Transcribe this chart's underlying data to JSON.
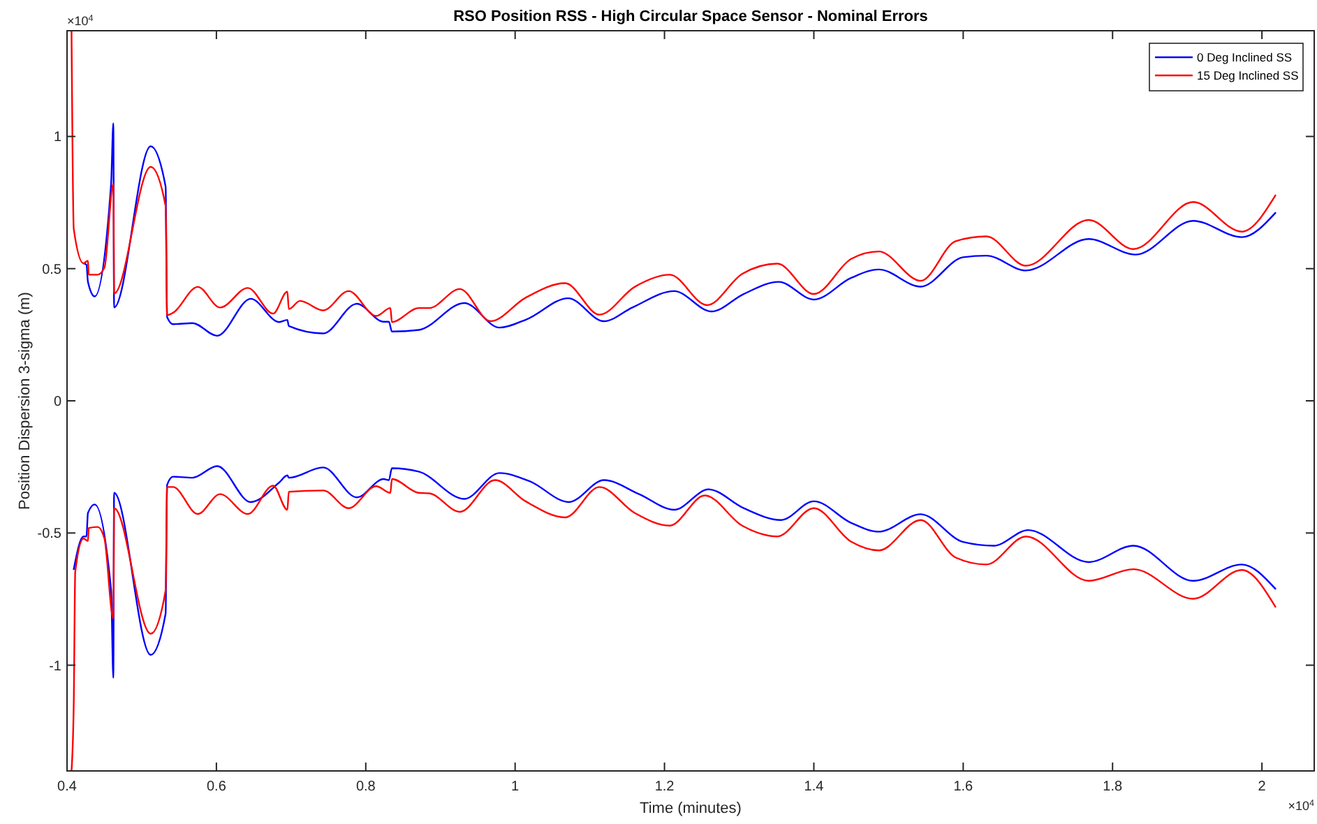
{
  "chart_data": {
    "type": "line",
    "title": "RSO Position RSS - High Circular Space Sensor - Nominal Errors",
    "xlabel": "Time (minutes)",
    "ylabel": "Position Dispersion 3-sigma (m)",
    "annotations": [
      "×10$^{4}$",
      "×10$^{4}$"
    ],
    "xlim": [
      0.4,
      2.07
    ],
    "xticks": [
      0.4,
      0.6,
      0.8,
      1,
      1.2,
      1.4,
      1.6,
      1.8,
      2
    ],
    "ylim": [
      -1.4,
      1.4
    ],
    "yticks": [
      -1,
      -0.5,
      0,
      0.5,
      1
    ],
    "grid": false,
    "legend": "top right",
    "line_style": "solid",
    "marker": "none",
    "series": [
      {
        "name": "0 Deg Inclined SS",
        "color": "#0000ff",
        "x": [
          0.422,
          0.426,
          0.428,
          0.437,
          0.459,
          0.462,
          0.463,
          0.512,
          0.532,
          0.534,
          0.542,
          0.568,
          0.601,
          0.646,
          0.684,
          0.695,
          0.697,
          0.743,
          0.788,
          0.824,
          0.831,
          0.835,
          0.871,
          0.932,
          0.979,
          1.016,
          1.071,
          1.119,
          1.157,
          1.213,
          1.263,
          1.306,
          1.353,
          1.4,
          1.45,
          1.487,
          1.543,
          1.6,
          1.631,
          1.684,
          1.768,
          1.831,
          1.908,
          1.973,
          2.018
        ],
        "values": [
          0.52,
          0.515,
          0.45,
          0.395,
          0.82,
          1.05,
          0.353,
          0.963,
          0.81,
          0.317,
          0.29,
          0.294,
          0.246,
          0.386,
          0.298,
          0.306,
          0.283,
          0.255,
          0.367,
          0.299,
          0.299,
          0.262,
          0.268,
          0.37,
          0.277,
          0.309,
          0.388,
          0.301,
          0.353,
          0.415,
          0.338,
          0.404,
          0.45,
          0.383,
          0.465,
          0.497,
          0.432,
          0.543,
          0.549,
          0.493,
          0.612,
          0.553,
          0.681,
          0.619,
          0.711
        ]
      },
      {
        "color": "#0000ff",
        "x": [
          0.409,
          0.422,
          0.426,
          0.428,
          0.437,
          0.459,
          0.462,
          0.463,
          0.512,
          0.532,
          0.534,
          0.542,
          0.568,
          0.601,
          0.646,
          0.684,
          0.695,
          0.697,
          0.743,
          0.788,
          0.824,
          0.831,
          0.835,
          0.871,
          0.932,
          0.979,
          1.02,
          1.072,
          1.119,
          1.166,
          1.213,
          1.259,
          1.306,
          1.356,
          1.4,
          1.45,
          1.487,
          1.543,
          1.6,
          1.641,
          1.687,
          1.768,
          1.828,
          1.908,
          1.973,
          2.018
        ],
        "values": [
          -0.637,
          -0.513,
          -0.513,
          -0.424,
          -0.392,
          -0.717,
          -1.048,
          -0.348,
          -0.961,
          -0.805,
          -0.318,
          -0.287,
          -0.291,
          -0.247,
          -0.383,
          -0.309,
          -0.282,
          -0.291,
          -0.252,
          -0.365,
          -0.296,
          -0.3,
          -0.255,
          -0.268,
          -0.371,
          -0.273,
          -0.305,
          -0.383,
          -0.3,
          -0.353,
          -0.412,
          -0.335,
          -0.406,
          -0.451,
          -0.38,
          -0.462,
          -0.495,
          -0.429,
          -0.534,
          -0.548,
          -0.489,
          -0.61,
          -0.548,
          -0.681,
          -0.619,
          -0.711
        ]
      },
      {
        "name": "15 Deg Inclined SS",
        "color": "#ff0000",
        "x": [
          0.406,
          0.409,
          0.422,
          0.428,
          0.429,
          0.441,
          0.45,
          0.462,
          0.463,
          0.512,
          0.532,
          0.534,
          0.542,
          0.575,
          0.605,
          0.642,
          0.676,
          0.695,
          0.697,
          0.712,
          0.743,
          0.777,
          0.814,
          0.833,
          0.835,
          0.871,
          0.885,
          0.926,
          0.967,
          1.014,
          1.067,
          1.113,
          1.16,
          1.207,
          1.257,
          1.304,
          1.351,
          1.4,
          1.45,
          1.487,
          1.543,
          1.59,
          1.631,
          1.684,
          1.768,
          1.828,
          1.908,
          1.973,
          2.018
        ],
        "values": [
          1.4,
          0.65,
          0.52,
          0.53,
          0.477,
          0.477,
          0.503,
          0.82,
          0.406,
          0.885,
          0.737,
          0.324,
          0.333,
          0.431,
          0.353,
          0.427,
          0.33,
          0.413,
          0.347,
          0.378,
          0.342,
          0.415,
          0.321,
          0.351,
          0.298,
          0.351,
          0.351,
          0.423,
          0.301,
          0.39,
          0.445,
          0.326,
          0.431,
          0.477,
          0.362,
          0.48,
          0.519,
          0.404,
          0.537,
          0.565,
          0.454,
          0.604,
          0.622,
          0.511,
          0.684,
          0.574,
          0.752,
          0.64,
          0.777
        ]
      },
      {
        "color": "#ff0000",
        "x": [
          0.406,
          0.409,
          0.411,
          0.422,
          0.428,
          0.429,
          0.441,
          0.45,
          0.462,
          0.463,
          0.512,
          0.532,
          0.534,
          0.542,
          0.575,
          0.605,
          0.642,
          0.676,
          0.695,
          0.697,
          0.743,
          0.777,
          0.814,
          0.833,
          0.835,
          0.871,
          0.885,
          0.926,
          0.973,
          1.014,
          1.067,
          1.113,
          1.16,
          1.207,
          1.254,
          1.304,
          1.351,
          1.4,
          1.45,
          1.487,
          1.543,
          1.59,
          1.631,
          1.684,
          1.768,
          1.828,
          1.908,
          1.973,
          2.018
        ],
        "values": [
          -1.4,
          -1.142,
          -0.646,
          -0.521,
          -0.53,
          -0.481,
          -0.477,
          -0.52,
          -0.823,
          -0.406,
          -0.881,
          -0.717,
          -0.326,
          -0.326,
          -0.428,
          -0.353,
          -0.428,
          -0.321,
          -0.412,
          -0.344,
          -0.339,
          -0.406,
          -0.323,
          -0.348,
          -0.296,
          -0.348,
          -0.35,
          -0.42,
          -0.3,
          -0.38,
          -0.441,
          -0.326,
          -0.424,
          -0.472,
          -0.358,
          -0.472,
          -0.513,
          -0.406,
          -0.533,
          -0.566,
          -0.451,
          -0.593,
          -0.619,
          -0.513,
          -0.681,
          -0.637,
          -0.749,
          -0.64,
          -0.779
        ]
      }
    ]
  }
}
